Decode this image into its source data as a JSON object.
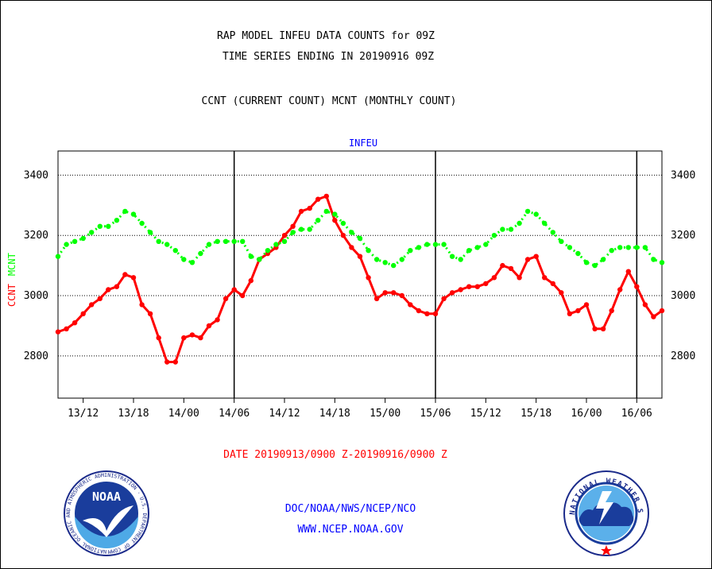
{
  "header": {
    "title_line1": "RAP MODEL INFEU DATA COUNTS for 09Z",
    "title_line2": "TIME SERIES ENDING IN 20190916 09Z",
    "subtitle": "CCNT (CURRENT COUNT) MCNT (MONTHLY COUNT)"
  },
  "footer": {
    "date_range": "DATE 20190913/0900 Z-20190916/0900 Z",
    "agency": "DOC/NOAA/NWS/NCEP/NCO",
    "website": "WWW.NCEP.NOAA.GOV"
  },
  "logos": {
    "noaa_text": "NOAA",
    "noaa_ring": "NATIONAL OCEANIC AND ATMOSPHERIC ADMINISTRATION · U.S. DEPARTMENT OF COMMERCE ·",
    "nws_ring": "NATIONAL WEATHER SERVICE"
  },
  "colors": {
    "ccnt": "#ff0000",
    "mcnt": "#00ff00",
    "plot_title": "#0000ff",
    "footer_link": "#0000ff",
    "date": "#ff0000"
  },
  "chart_data": {
    "type": "line",
    "title": "INFEU",
    "ylabel_ccnt": "CCNT",
    "ylabel_mcnt": "MCNT",
    "ylim": [
      2660,
      3480
    ],
    "yticks": [
      2800,
      3000,
      3200,
      3400
    ],
    "grid": true,
    "x_tick_labels": [
      "13/12",
      "13/18",
      "14/00",
      "14/06",
      "14/12",
      "14/18",
      "15/00",
      "15/06",
      "15/12",
      "15/18",
      "16/00",
      "16/06"
    ],
    "x_tick_hours": [
      3,
      9,
      15,
      21,
      27,
      33,
      39,
      45,
      51,
      57,
      63,
      69
    ],
    "day_boundary_hours": [
      21,
      45,
      69
    ],
    "x_hours_range": [
      0,
      72
    ],
    "series": [
      {
        "name": "CCNT",
        "color": "#ff0000",
        "values": [
          2880,
          2890,
          2910,
          2940,
          2970,
          2990,
          3020,
          3030,
          3070,
          3060,
          2970,
          2940,
          2860,
          2780,
          2780,
          2860,
          2870,
          2860,
          2900,
          2920,
          2990,
          3020,
          3000,
          3050,
          3120,
          3140,
          3160,
          3200,
          3230,
          3280,
          3290,
          3320,
          3330,
          3250,
          3200,
          3160,
          3130,
          3060,
          2990,
          3010,
          3010,
          3000,
          2970,
          2950,
          2940,
          2940,
          2990,
          3010,
          3020,
          3030,
          3030,
          3040,
          3060,
          3100,
          3090,
          3060,
          3120,
          3130,
          3060,
          3040,
          3010,
          2940,
          2950,
          2970,
          2890,
          2890,
          2950,
          3020,
          3080,
          3030,
          2970,
          2930,
          2950
        ]
      },
      {
        "name": "MCNT",
        "color": "#00ff00",
        "values": [
          3130,
          3170,
          3180,
          3190,
          3210,
          3230,
          3230,
          3250,
          3280,
          3270,
          3240,
          3210,
          3180,
          3170,
          3150,
          3120,
          3110,
          3140,
          3170,
          3180,
          3180,
          3180,
          3180,
          3130,
          3120,
          3150,
          3170,
          3180,
          3210,
          3220,
          3220,
          3250,
          3280,
          3270,
          3240,
          3210,
          3190,
          3150,
          3120,
          3110,
          3100,
          3120,
          3150,
          3160,
          3170,
          3170,
          3170,
          3130,
          3120,
          3150,
          3160,
          3170,
          3200,
          3220,
          3220,
          3240,
          3280,
          3270,
          3240,
          3210,
          3180,
          3160,
          3140,
          3110,
          3100,
          3120,
          3150,
          3160,
          3160,
          3160,
          3160,
          3120,
          3110
        ]
      }
    ]
  }
}
